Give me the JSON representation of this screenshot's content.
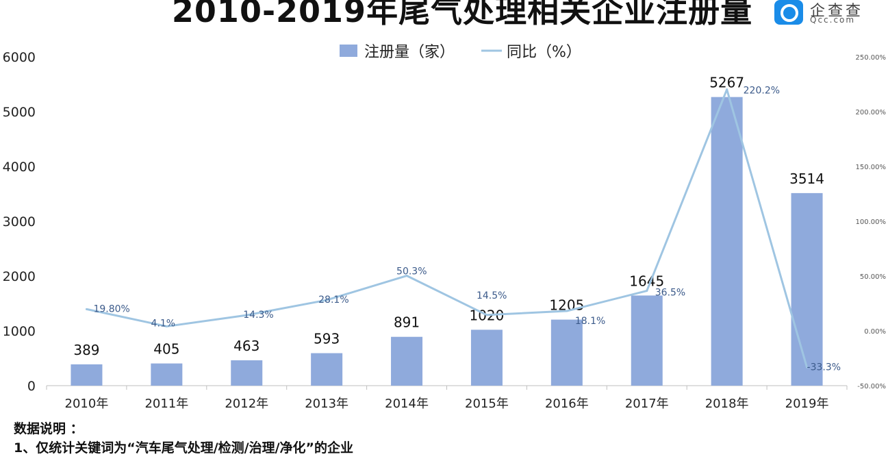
{
  "title": "2010-2019年尾气处理相关企业注册量",
  "logo": {
    "cn": "企查查",
    "en": "Qcc.com"
  },
  "colors": {
    "bar": "#8faadc",
    "line": "#9fc5e2"
  },
  "notes": {
    "heading": "数据说明 ：",
    "line1": "1、仅统计关键词为“汽车尾气处理/检测/治理/净化”的企业"
  },
  "chart_data": {
    "type": "bar",
    "categories": [
      "2010年",
      "2011年",
      "2012年",
      "2013年",
      "2014年",
      "2015年",
      "2016年",
      "2017年",
      "2018年",
      "2019年"
    ],
    "series": [
      {
        "name": "注册量（家）",
        "type": "bar",
        "axis": "left",
        "values": [
          389,
          405,
          463,
          593,
          891,
          1020,
          1205,
          1645,
          5267,
          3514
        ],
        "labels": [
          "389",
          "405",
          "463",
          "593",
          "891",
          "1020",
          "1205",
          "1645",
          "5267",
          "3514"
        ]
      },
      {
        "name": "同比（%）",
        "type": "line",
        "axis": "right",
        "values": [
          19.8,
          4.1,
          14.3,
          28.1,
          50.3,
          14.5,
          18.1,
          36.5,
          220.2,
          -33.3
        ],
        "labels": [
          "19.80%",
          "4.1%",
          "14.3%",
          "28.1%",
          "50.3%",
          "14.5%",
          "18.1%",
          "36.5%",
          "220.2%",
          "-33.3%"
        ]
      }
    ],
    "y_left": {
      "ylim": [
        0,
        6000
      ],
      "ticks": [
        "0",
        "1000",
        "2000",
        "3000",
        "4000",
        "5000",
        "6000"
      ]
    },
    "y_right": {
      "ylim": [
        -50,
        250
      ],
      "tick_values": [
        -50,
        0,
        50,
        100,
        150,
        200,
        250
      ],
      "ticks": [
        "-50.00%",
        "0.00%",
        "50.00%",
        "100.00%",
        "150.00%",
        "200.00%",
        "250.00%"
      ]
    },
    "legend": "top-center",
    "grid": false
  }
}
